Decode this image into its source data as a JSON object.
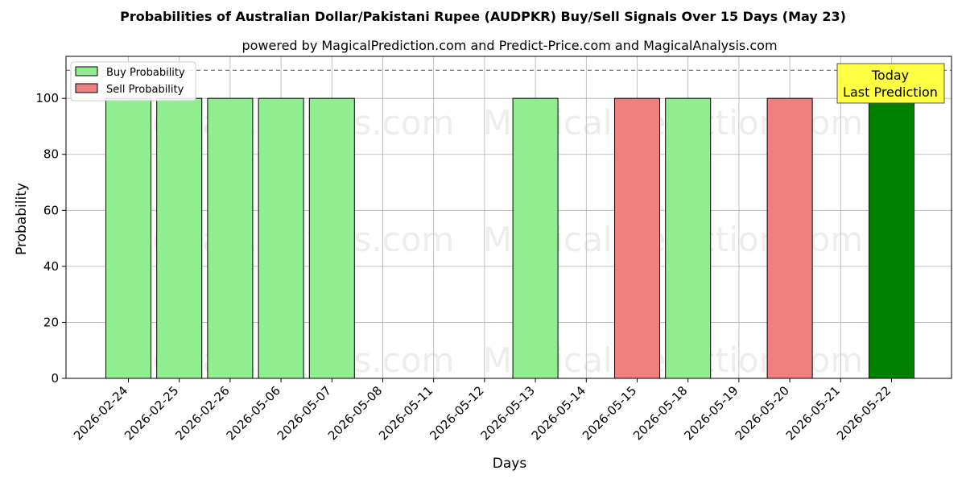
{
  "chart_data": {
    "type": "bar",
    "title": "Probabilities of Australian Dollar/Pakistani Rupee (AUDPKR) Buy/Sell Signals Over 15 Days (May 23)",
    "subtitle": "powered by MagicalPrediction.com and Predict-Price.com and MagicalAnalysis.com",
    "xlabel": "Days",
    "ylabel": "Probability",
    "ylim": [
      0,
      115
    ],
    "yticks": [
      0,
      20,
      40,
      60,
      80,
      100
    ],
    "reference_line": 110,
    "categories": [
      "2026-02-24",
      "2026-02-25",
      "2026-02-26",
      "2026-05-06",
      "2026-05-07",
      "2026-05-08",
      "2026-05-11",
      "2026-05-12",
      "2026-05-13",
      "2026-05-14",
      "2026-05-15",
      "2026-05-18",
      "2026-05-19",
      "2026-05-20",
      "2026-05-21",
      "2026-05-22"
    ],
    "series": [
      {
        "name": "Buy Probability",
        "color": "#90ee90",
        "values": [
          100,
          100,
          100,
          100,
          100,
          0,
          0,
          0,
          100,
          0,
          0,
          100,
          0,
          0,
          0,
          100
        ]
      },
      {
        "name": "Sell Probability",
        "color": "#f08080",
        "values": [
          0,
          0,
          0,
          0,
          0,
          0,
          0,
          0,
          0,
          0,
          100,
          0,
          0,
          100,
          0,
          0
        ]
      }
    ],
    "highlight": {
      "category": "2026-05-22",
      "color": "#008000"
    },
    "legend_position": "top-left",
    "grid": true,
    "annotation": {
      "lines": [
        "Today",
        "Last Prediction"
      ],
      "background": "#ffff44"
    },
    "watermarks": [
      "MagicalAnalysis.com",
      "MagicalPrediction.com"
    ]
  }
}
